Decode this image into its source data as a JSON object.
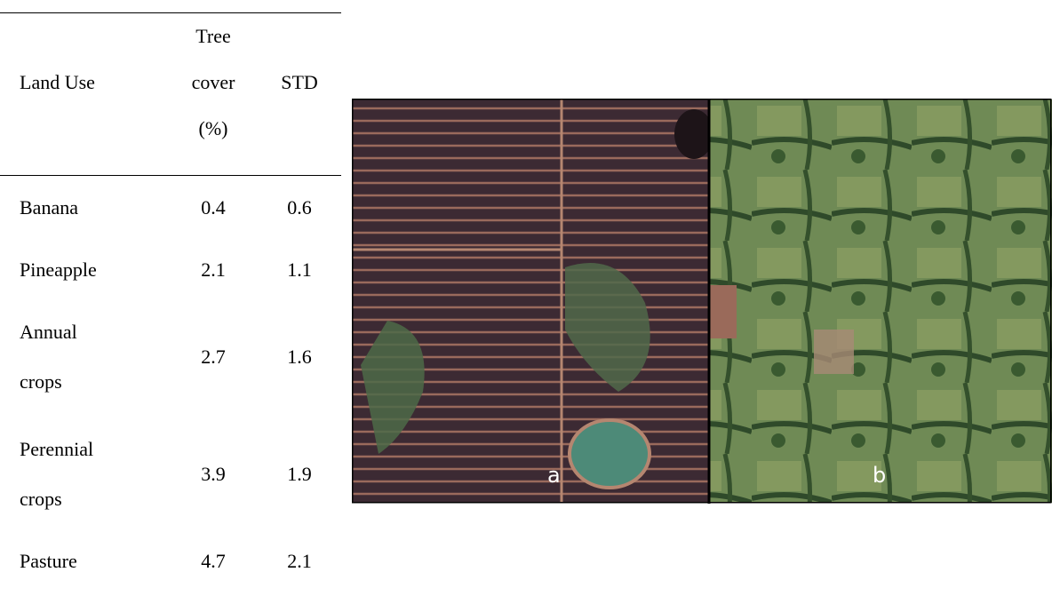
{
  "table": {
    "header": [
      "Land Use",
      "Tree cover (%)",
      "STD"
    ],
    "rows": [
      [
        "Banana",
        "0.4",
        "0.6"
      ],
      [
        "Pineapple",
        "2.1",
        "1.1"
      ],
      [
        "Annual crops",
        "2.7",
        "1.6"
      ],
      [
        "Perennial crops",
        "3.9",
        "1.9"
      ],
      [
        "Pasture",
        "4.7",
        "2.1"
      ]
    ]
  },
  "figure": {
    "panels": [
      "a",
      "b"
    ]
  }
}
